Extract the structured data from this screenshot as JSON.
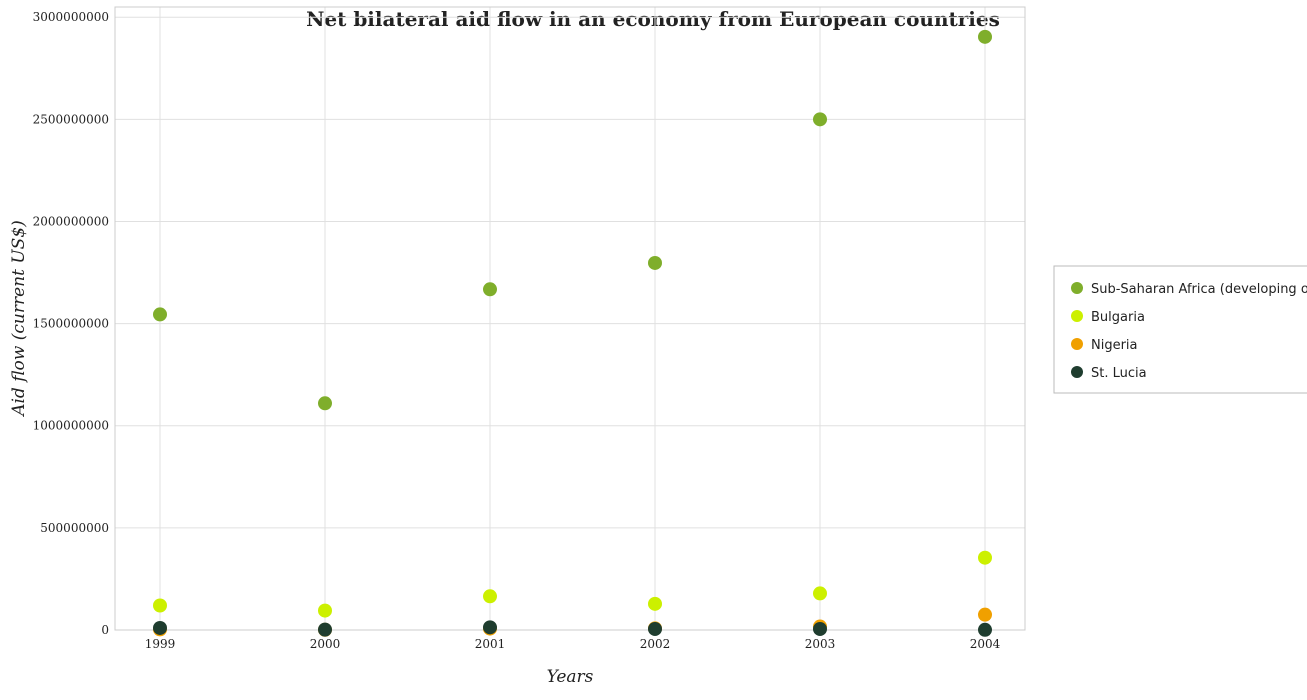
{
  "title": "Net bilateral aid flow in an economy from European countries",
  "chart_data": {
    "type": "scatter",
    "title": "Net bilateral aid flow in an economy from European countries",
    "xlabel": "Years",
    "ylabel": "Aid flow (current US$)",
    "categories": [
      "1999",
      "2000",
      "2001",
      "2002",
      "2003",
      "2004"
    ],
    "ylim": [
      0,
      3050000000
    ],
    "yticks": [
      0,
      500000000,
      1000000000,
      1500000000,
      2000000000,
      2500000000,
      3000000000
    ],
    "ytick_labels": [
      "0",
      "500000000",
      "1000000000",
      "1500000000",
      "2000000000",
      "2500000000",
      "3000000000"
    ],
    "grid": true,
    "legend_position": "right",
    "series": [
      {
        "name": "Sub-Saharan Africa (developing only)",
        "color": "#7fae2b",
        "values": [
          1545000000,
          1110000000,
          1668000000,
          1797000000,
          2500000000,
          2904000000
        ]
      },
      {
        "name": "Bulgaria",
        "color": "#ccf000",
        "values": [
          120000000,
          95000000,
          165000000,
          128000000,
          179000000,
          354000000
        ]
      },
      {
        "name": "Nigeria",
        "color": "#f0a000",
        "values": [
          3000000,
          1000000,
          7000000,
          8000000,
          17000000,
          75000000
        ]
      },
      {
        "name": "St. Lucia",
        "color": "#1f3d2f",
        "values": [
          10000000,
          2000000,
          13000000,
          5000000,
          5000000,
          1000000
        ]
      }
    ]
  }
}
